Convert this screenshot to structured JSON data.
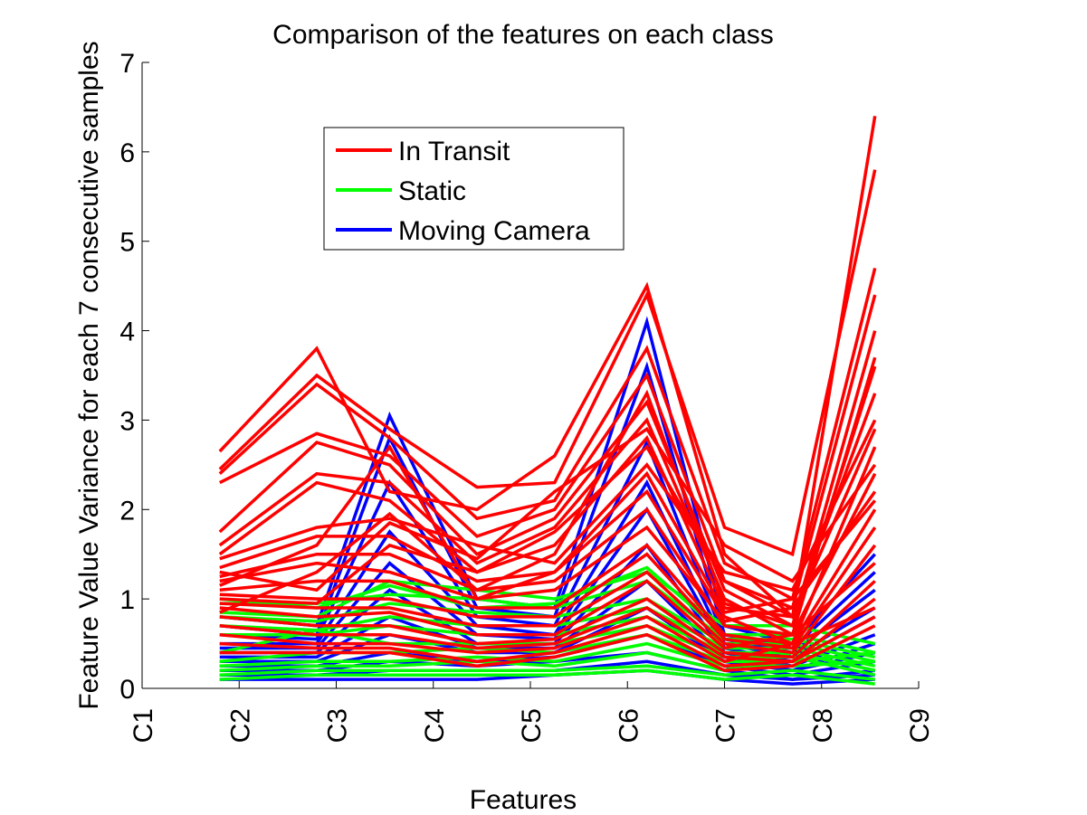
{
  "chart_data": {
    "type": "line",
    "title": "Comparison of the features on each class",
    "xlabel": "Features",
    "ylabel": "Feature Value Variance for each 7 consecutive samples",
    "x_tick_labels": [
      "C1",
      "C2",
      "C3",
      "C4",
      "C5",
      "C6",
      "C7",
      "C8",
      "C9"
    ],
    "x_tick_values": [
      1,
      2,
      3,
      4,
      5,
      6,
      7,
      8,
      9
    ],
    "y_ticks": [
      0,
      1,
      2,
      3,
      4,
      5,
      6,
      7
    ],
    "ylim": [
      0,
      7
    ],
    "xlim": [
      1,
      9
    ],
    "x_points": [
      1.8,
      2.8,
      3.55,
      4.45,
      5.25,
      6.2,
      7.0,
      7.7,
      8.55
    ],
    "legend_position": "top-left",
    "grid": false,
    "series": [
      {
        "name": "In Transit",
        "color": "#ff0000",
        "lines": [
          [
            2.65,
            3.8,
            2.2,
            2.0,
            2.6,
            4.5,
            1.5,
            0.8,
            6.4
          ],
          [
            2.45,
            3.5,
            2.9,
            2.25,
            2.3,
            4.4,
            1.8,
            1.5,
            5.8
          ],
          [
            2.4,
            3.4,
            2.8,
            1.9,
            2.1,
            3.8,
            1.4,
            1.0,
            4.7
          ],
          [
            2.3,
            2.85,
            2.6,
            1.7,
            2.0,
            3.5,
            1.2,
            0.9,
            4.4
          ],
          [
            1.75,
            2.75,
            2.5,
            1.5,
            1.9,
            3.2,
            1.1,
            0.7,
            4.0
          ],
          [
            1.6,
            2.4,
            2.3,
            1.4,
            1.8,
            3.0,
            1.0,
            0.6,
            3.7
          ],
          [
            1.5,
            2.3,
            2.1,
            1.3,
            1.6,
            2.8,
            0.9,
            0.8,
            3.3
          ],
          [
            1.45,
            1.8,
            1.9,
            1.6,
            1.4,
            2.5,
            1.3,
            1.1,
            3.0
          ],
          [
            1.35,
            1.7,
            1.7,
            1.2,
            1.3,
            2.2,
            0.8,
            0.5,
            2.7
          ],
          [
            1.25,
            1.5,
            1.5,
            1.1,
            1.2,
            2.0,
            0.7,
            0.6,
            2.4
          ],
          [
            1.2,
            1.4,
            1.3,
            1.0,
            1.1,
            1.8,
            0.75,
            0.9,
            2.2
          ],
          [
            1.1,
            1.2,
            1.2,
            0.9,
            0.9,
            1.6,
            0.6,
            0.5,
            2.0
          ],
          [
            1.05,
            1.0,
            1.0,
            0.8,
            0.8,
            1.5,
            0.55,
            0.45,
            1.8
          ],
          [
            0.95,
            0.9,
            0.9,
            0.7,
            0.7,
            1.3,
            0.5,
            0.4,
            1.6
          ],
          [
            0.9,
            0.8,
            0.85,
            0.6,
            0.6,
            1.2,
            0.45,
            0.6,
            1.4
          ],
          [
            0.8,
            0.7,
            0.7,
            0.5,
            0.55,
            1.0,
            0.4,
            0.35,
            1.2
          ],
          [
            0.7,
            0.6,
            0.6,
            0.45,
            0.5,
            0.9,
            0.35,
            0.3,
            1.0
          ],
          [
            0.6,
            0.5,
            0.5,
            0.4,
            0.45,
            0.8,
            0.3,
            0.5,
            0.9
          ],
          [
            0.5,
            0.45,
            0.45,
            0.3,
            0.4,
            0.7,
            0.25,
            0.3,
            0.8
          ],
          [
            0.4,
            0.4,
            0.4,
            0.25,
            0.35,
            0.6,
            0.2,
            0.25,
            0.7
          ],
          [
            1.3,
            1.1,
            1.85,
            1.45,
            2.2,
            2.9,
            1.6,
            1.2,
            2.5
          ],
          [
            1.0,
            0.95,
            1.6,
            1.3,
            1.75,
            2.7,
            1.2,
            0.8,
            2.9
          ],
          [
            0.85,
            1.3,
            1.95,
            1.1,
            1.5,
            3.3,
            0.95,
            0.7,
            3.6
          ],
          [
            1.15,
            1.6,
            2.7,
            1.0,
            1.3,
            2.4,
            0.85,
            1.0,
            2.1
          ]
        ]
      },
      {
        "name": "Static",
        "color": "#00ff00",
        "lines": [
          [
            1.0,
            0.9,
            1.15,
            0.9,
            0.95,
            1.35,
            0.6,
            0.6,
            0.4
          ],
          [
            0.95,
            0.95,
            1.05,
            1.0,
            0.9,
            1.2,
            0.55,
            0.55,
            0.35
          ],
          [
            0.85,
            0.8,
            1.2,
            1.1,
            1.0,
            1.3,
            0.7,
            0.7,
            0.5
          ],
          [
            0.8,
            0.75,
            0.95,
            0.85,
            0.8,
            1.0,
            0.5,
            0.5,
            0.3
          ],
          [
            0.7,
            0.65,
            0.8,
            0.7,
            0.7,
            0.9,
            0.45,
            0.45,
            0.25
          ],
          [
            0.6,
            0.6,
            0.7,
            0.6,
            0.6,
            0.8,
            0.4,
            0.4,
            0.2
          ],
          [
            0.4,
            0.65,
            0.5,
            0.5,
            0.5,
            0.7,
            0.35,
            0.35,
            0.15
          ],
          [
            0.3,
            0.4,
            0.4,
            0.45,
            0.4,
            0.6,
            0.3,
            0.3,
            0.4
          ],
          [
            0.25,
            0.3,
            0.3,
            0.35,
            0.3,
            0.5,
            0.25,
            0.25,
            0.3
          ],
          [
            0.2,
            0.25,
            0.25,
            0.3,
            0.25,
            0.4,
            0.2,
            0.4,
            0.2
          ],
          [
            0.15,
            0.2,
            0.2,
            0.2,
            0.2,
            0.25,
            0.15,
            0.2,
            0.1
          ],
          [
            0.1,
            0.15,
            0.15,
            0.15,
            0.15,
            0.2,
            0.1,
            0.15,
            0.05
          ]
        ]
      },
      {
        "name": "Moving Camera",
        "color": "#0000ff",
        "lines": [
          [
            0.8,
            0.7,
            3.05,
            1.0,
            0.9,
            4.1,
            0.7,
            0.5,
            1.5
          ],
          [
            0.7,
            0.6,
            2.8,
            0.9,
            0.8,
            3.6,
            0.6,
            0.45,
            1.3
          ],
          [
            0.6,
            0.55,
            2.3,
            0.8,
            0.7,
            2.75,
            0.55,
            0.4,
            1.1
          ],
          [
            0.5,
            0.5,
            1.75,
            0.7,
            0.6,
            2.3,
            0.5,
            0.35,
            0.9
          ],
          [
            0.45,
            0.45,
            1.4,
            0.6,
            0.55,
            2.0,
            0.45,
            0.3,
            0.8
          ],
          [
            0.4,
            0.4,
            1.1,
            0.5,
            0.5,
            1.6,
            0.4,
            0.25,
            0.6
          ],
          [
            0.35,
            0.35,
            0.8,
            0.45,
            0.45,
            1.2,
            0.35,
            0.2,
            0.5
          ],
          [
            0.3,
            0.3,
            0.6,
            0.4,
            0.4,
            0.9,
            0.3,
            0.2,
            0.4
          ],
          [
            0.25,
            0.25,
            0.4,
            0.3,
            0.35,
            0.6,
            0.25,
            0.15,
            0.3
          ],
          [
            0.2,
            0.2,
            0.3,
            0.25,
            0.3,
            0.4,
            0.2,
            0.1,
            0.2
          ],
          [
            0.15,
            0.15,
            0.2,
            0.2,
            0.2,
            0.3,
            0.15,
            0.1,
            0.15
          ],
          [
            0.1,
            0.1,
            0.1,
            0.1,
            0.15,
            0.2,
            0.1,
            0.05,
            0.1
          ]
        ]
      }
    ]
  }
}
